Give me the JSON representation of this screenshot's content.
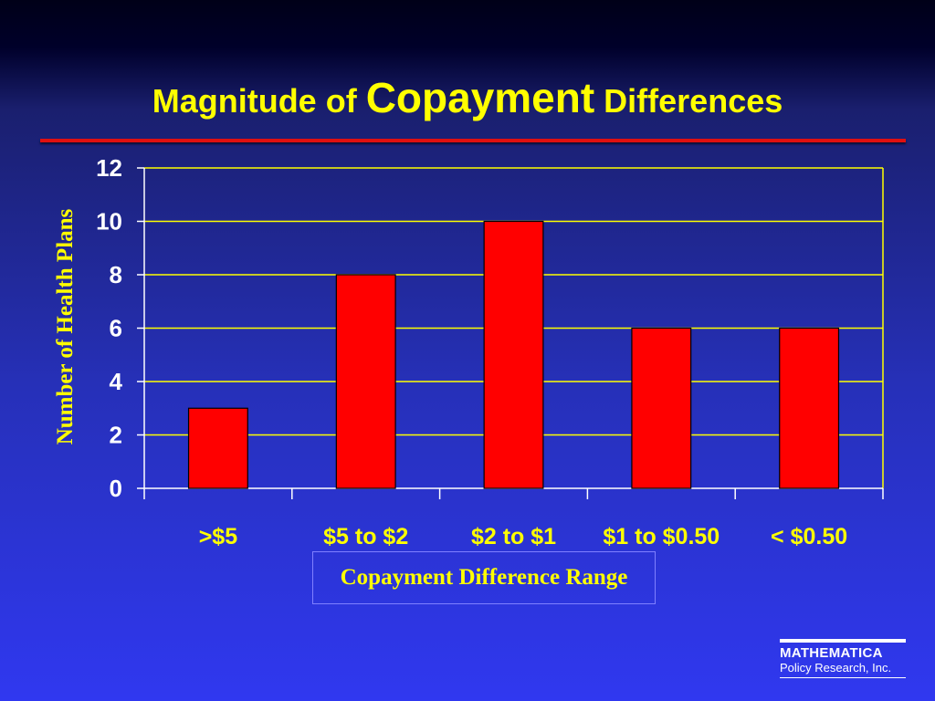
{
  "title": {
    "part1": "Magnitude of ",
    "part2": "Copayment",
    "part3": " Differences"
  },
  "colors": {
    "title": "#ffff00",
    "bars": "#ff0000",
    "grid": "#ffff00",
    "rule": "#e01010"
  },
  "chart_data": {
    "type": "bar",
    "categories": [
      ">$5",
      "$5 to $2",
      "$2 to $1",
      "$1 to $0.50",
      "< $0.50"
    ],
    "values": [
      3,
      8,
      10,
      6,
      6
    ],
    "xlabel": "Copayment Difference Range",
    "ylabel": "Number of Health Plans",
    "ylim": [
      0,
      12
    ],
    "yticks": [
      0,
      2,
      4,
      6,
      8,
      10,
      12
    ],
    "grid": true,
    "legend": "none"
  },
  "logo": {
    "name": "MATHEMATICA",
    "sub": "Policy Research, Inc."
  }
}
